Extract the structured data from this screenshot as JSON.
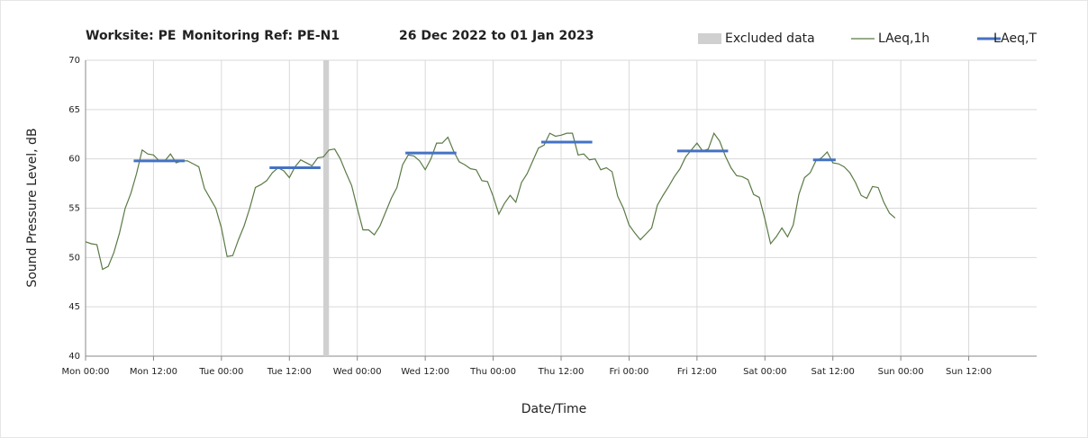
{
  "chart_data": {
    "type": "line",
    "title_parts": [
      "Worksite: PE",
      "Monitoring Ref: PE-N1",
      "26 Dec 2022 to 01 Jan 2023"
    ],
    "xlabel": "Date/Time",
    "ylabel": "Sound Pressure Level, dB",
    "xlim": [
      0,
      168
    ],
    "xticks": [
      {
        "value": 0,
        "label": "Mon 00:00"
      },
      {
        "value": 12,
        "label": "Mon 12:00"
      },
      {
        "value": 24,
        "label": "Tue 00:00"
      },
      {
        "value": 36,
        "label": "Tue 12:00"
      },
      {
        "value": 48,
        "label": "Wed 00:00"
      },
      {
        "value": 60,
        "label": "Wed 12:00"
      },
      {
        "value": 72,
        "label": "Thu 00:00"
      },
      {
        "value": 84,
        "label": "Thu 12:00"
      },
      {
        "value": 96,
        "label": "Fri 00:00"
      },
      {
        "value": 108,
        "label": "Fri 12:00"
      },
      {
        "value": 120,
        "label": "Sat 00:00"
      },
      {
        "value": 132,
        "label": "Sat 12:00"
      },
      {
        "value": 144,
        "label": "Sun 00:00"
      },
      {
        "value": 156,
        "label": "Sun 12:00"
      }
    ],
    "ylim": [
      40,
      70
    ],
    "yticks": [
      40,
      45,
      50,
      55,
      60,
      65,
      70
    ],
    "grid": true,
    "legend": "top-right",
    "x": [
      0,
      1,
      2,
      3,
      4,
      5,
      6,
      7,
      8,
      9,
      10,
      11,
      12,
      13,
      14,
      15,
      16,
      17,
      18,
      19,
      20,
      21,
      22,
      23,
      24,
      25,
      26,
      27,
      28,
      29,
      30,
      31,
      32,
      33,
      34,
      35,
      36,
      37,
      38,
      39,
      40,
      41,
      42,
      43,
      44,
      45,
      46,
      47,
      48,
      49,
      50,
      51,
      52,
      53,
      54,
      55,
      56,
      57,
      58,
      59,
      60,
      61,
      62,
      63,
      64,
      65,
      66,
      67,
      68,
      69,
      70,
      71,
      72,
      73,
      74,
      75,
      76,
      77,
      78,
      79,
      80,
      81,
      82,
      83,
      84,
      85,
      86,
      87,
      88,
      89,
      90,
      91,
      92,
      93,
      94,
      95,
      96,
      97,
      98,
      99,
      100,
      101,
      102,
      103,
      104,
      105,
      106,
      107,
      108,
      109,
      110,
      111,
      112,
      113,
      114,
      115,
      116,
      117,
      118,
      119,
      120,
      121,
      122,
      123,
      124,
      125,
      126,
      127,
      128,
      129,
      130,
      131,
      132,
      133,
      134,
      135,
      136,
      137,
      138,
      139,
      140,
      141,
      142,
      143
    ],
    "series": [
      {
        "name": "Excluded data",
        "color": "#d0d0d0",
        "ranges": [
          [
            42,
            43
          ]
        ]
      },
      {
        "name": "LAeq,1h",
        "color": "#5a7a45",
        "values": [
          51.6,
          51.4,
          51.3,
          48.8,
          49.1,
          50.5,
          52.5,
          55,
          56.5,
          58.5,
          60.9,
          60.5,
          60.4,
          59.8,
          59.8,
          60.5,
          59.6,
          59.8,
          59.8,
          59.5,
          59.2,
          57,
          56,
          55,
          53,
          50.1,
          50.2,
          51.8,
          53.2,
          55,
          57.1,
          57.4,
          57.8,
          58.6,
          59.1,
          58.8,
          58.1,
          59.2,
          59.9,
          59.6,
          59.3,
          60.1,
          60.2,
          60.9,
          61,
          60,
          58.6,
          57.3,
          55,
          52.8,
          52.8,
          52.3,
          53.2,
          54.6,
          56,
          57.1,
          59.4,
          60.4,
          60.3,
          59.8,
          58.9,
          60,
          61.6,
          61.6,
          62.2,
          60.8,
          59.7,
          59.4,
          59,
          58.9,
          57.8,
          57.7,
          56.2,
          54.4,
          55.5,
          56.3,
          55.6,
          57.6,
          58.5,
          59.8,
          61.1,
          61.4,
          62.6,
          62.3,
          62.4,
          62.6,
          62.6,
          60.4,
          60.5,
          59.9,
          60,
          58.9,
          59.1,
          58.7,
          56.2,
          55,
          53.3,
          52.5,
          51.8,
          52.4,
          53,
          55.3,
          56.3,
          57.2,
          58.2,
          59,
          60.2,
          60.9,
          61.6,
          60.8,
          61,
          62.6,
          61.8,
          60.3,
          59.1,
          58.3,
          58.2,
          57.9,
          56.4,
          56.1,
          53.9,
          51.4,
          52.1,
          53,
          52.1,
          53.3,
          56.4,
          58.1,
          58.6,
          59.8,
          60.1,
          60.7,
          59.6,
          59.5,
          59.2,
          58.6,
          57.6,
          56.3,
          56,
          57.2,
          57.1,
          55.6,
          54.5,
          54
        ]
      },
      {
        "name": "LAeq,T",
        "color": "#4472c4",
        "segments": [
          {
            "x": [
              8.5,
              17.5
            ],
            "value": 59.8
          },
          {
            "x": [
              32.5,
              41.5
            ],
            "value": 59.1
          },
          {
            "x": [
              56.5,
              65.5
            ],
            "value": 60.6
          },
          {
            "x": [
              80.5,
              89.5
            ],
            "value": 61.7
          },
          {
            "x": [
              104.5,
              113.5
            ],
            "value": 60.8
          },
          {
            "x": [
              128.5,
              132.5
            ],
            "value": 59.9
          }
        ]
      }
    ]
  }
}
